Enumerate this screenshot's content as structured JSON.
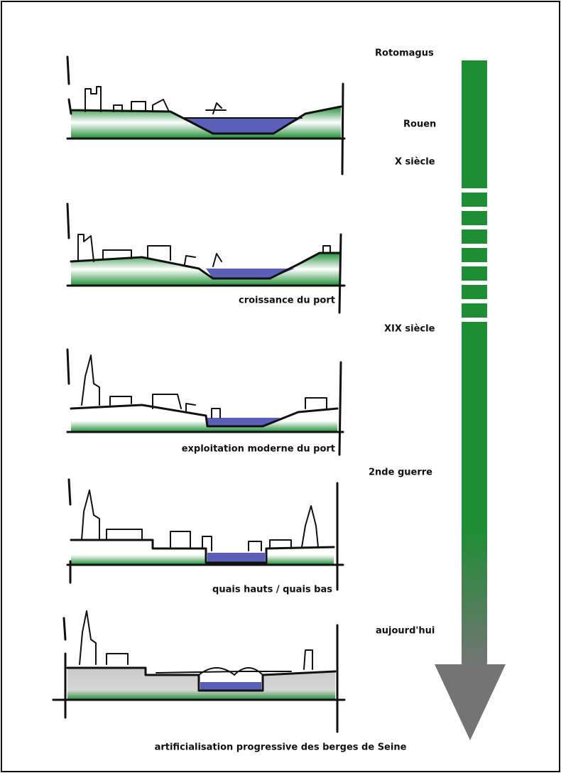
{
  "timeline": {
    "labels": [
      "Rotomagus",
      "Rouen",
      "X siècle",
      "XIX siècle",
      "2nde guerre",
      "aujourd'hui"
    ]
  },
  "sections": {
    "captions": [
      "croissance du port",
      "exploitation moderne du port",
      "quais hauts / quais bas"
    ]
  },
  "footer": {
    "caption": "artificialisation progressive des berges de Seine"
  }
}
